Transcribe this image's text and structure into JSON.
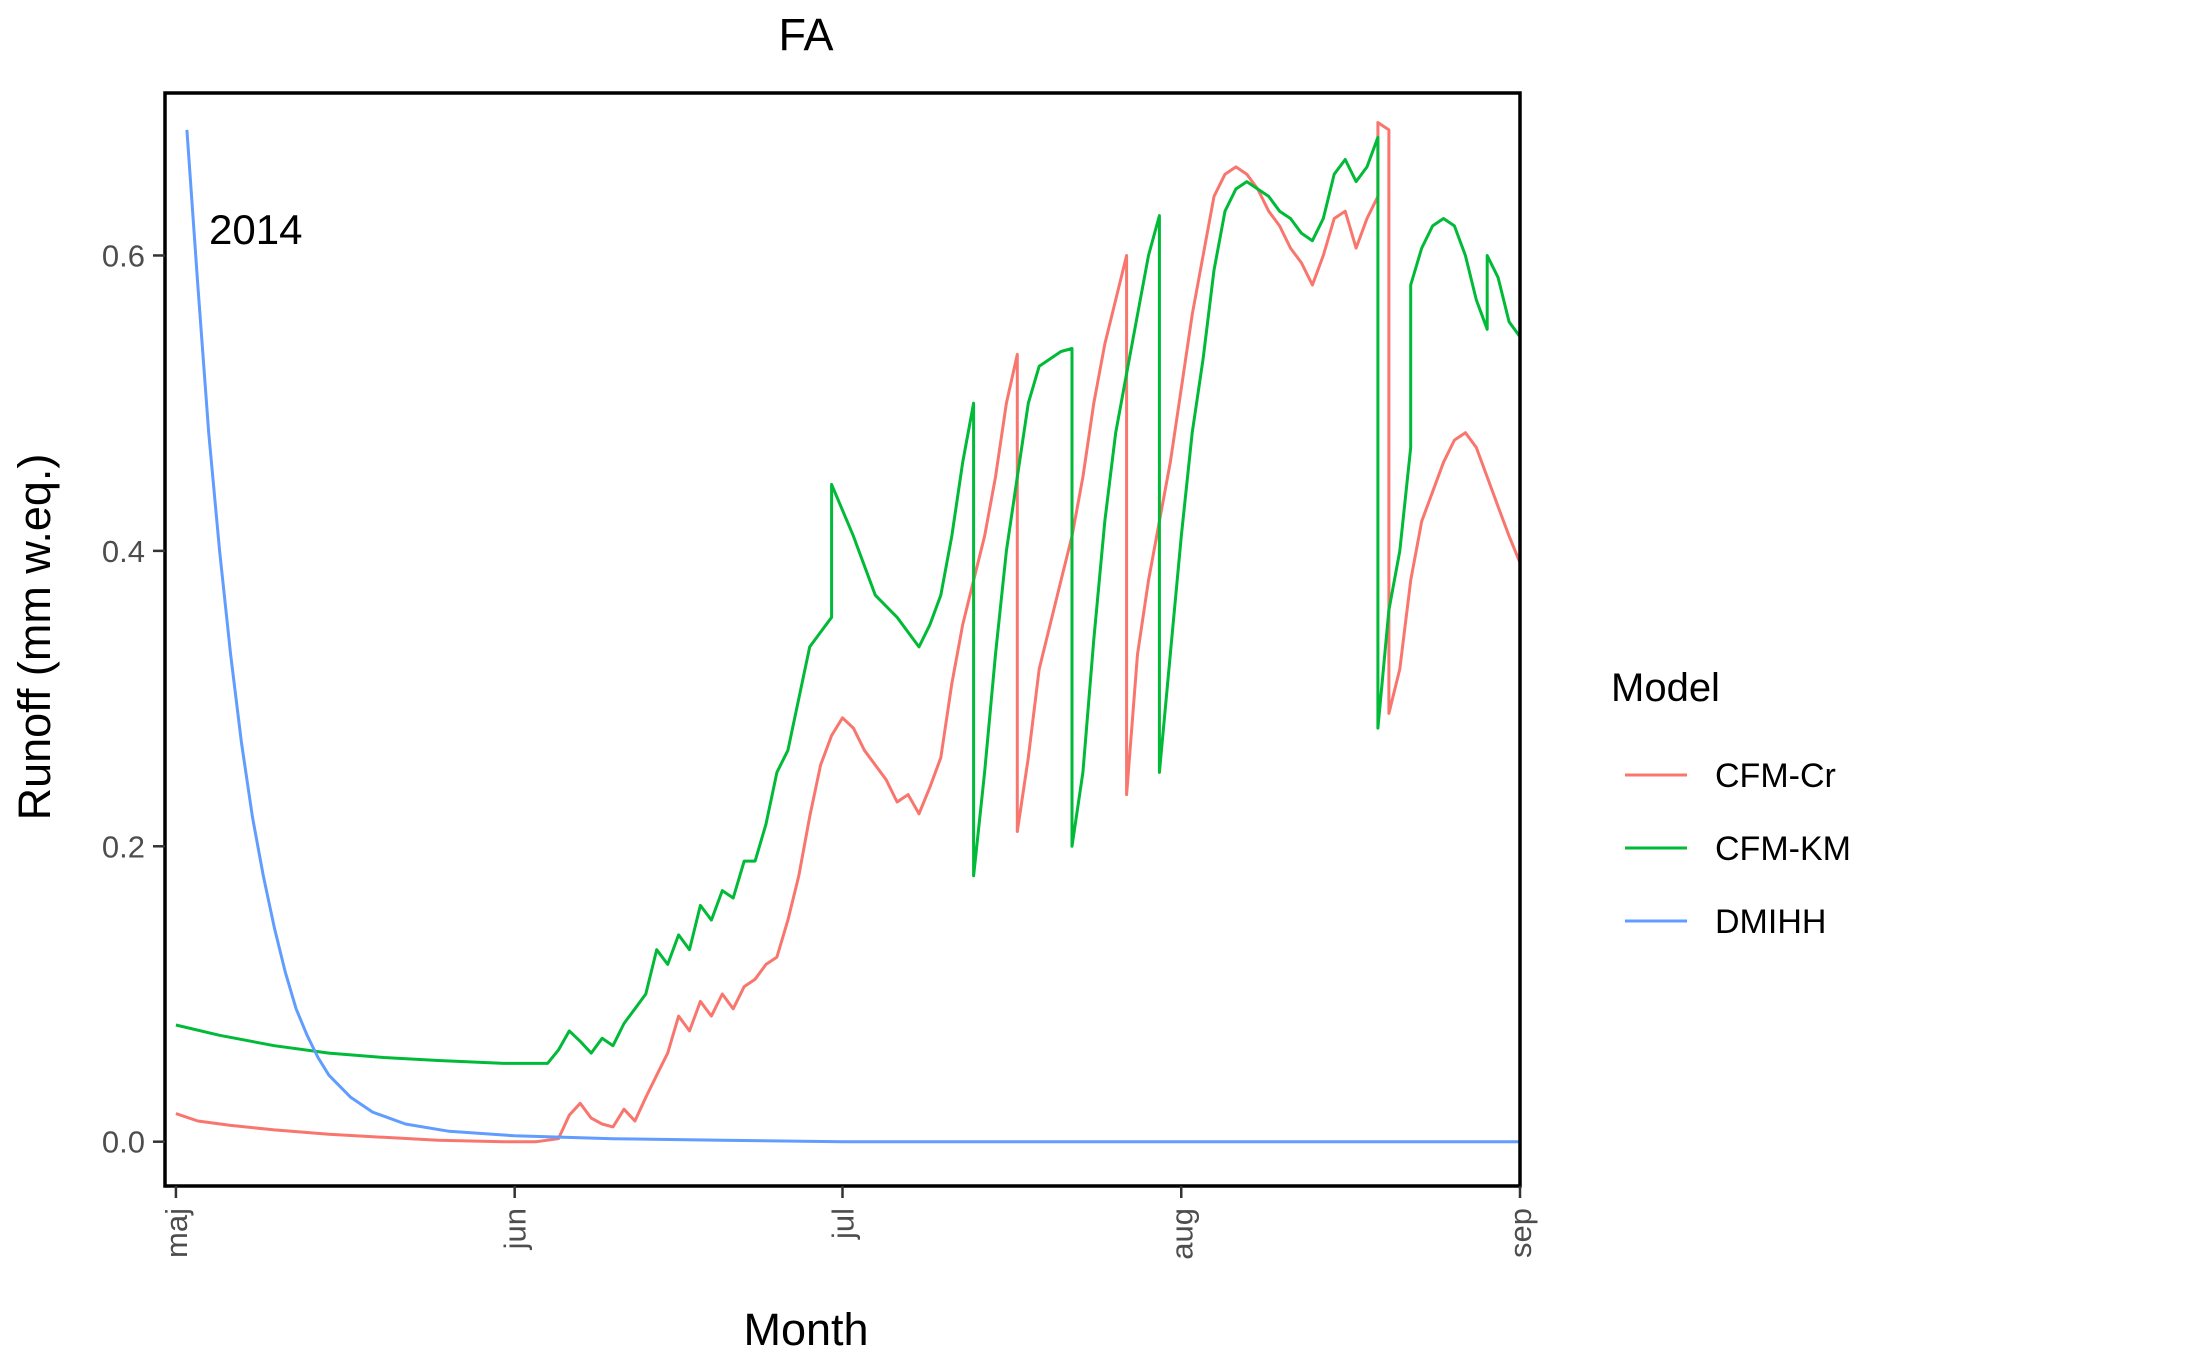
{
  "chart_data": {
    "type": "line",
    "title": "FA",
    "xlabel": "Month",
    "ylabel": "Runoff (mm w.eq.)",
    "annotation": "2014",
    "xlim": [
      "2014-04-30",
      "2014-09-01"
    ],
    "ylim": [
      -0.03,
      0.71
    ],
    "x_ticks": [
      {
        "date": "2014-05-01",
        "label": "maj"
      },
      {
        "date": "2014-06-01",
        "label": "jun"
      },
      {
        "date": "2014-07-01",
        "label": "jul"
      },
      {
        "date": "2014-08-01",
        "label": "aug"
      },
      {
        "date": "2014-09-01",
        "label": "sep"
      }
    ],
    "y_ticks": [
      0.0,
      0.2,
      0.4,
      0.6
    ],
    "y_tick_labels": [
      "0.0",
      "0.2",
      "0.4",
      "0.6"
    ],
    "grid": false,
    "legend": {
      "title": "Model",
      "position": "right"
    },
    "series": [
      {
        "name": "CFM-Cr",
        "color": "#F8766D",
        "points": [
          [
            "2014-05-01",
            0.019
          ],
          [
            "2014-05-03",
            0.014
          ],
          [
            "2014-05-06",
            0.011
          ],
          [
            "2014-05-10",
            0.008
          ],
          [
            "2014-05-15",
            0.005
          ],
          [
            "2014-05-20",
            0.003
          ],
          [
            "2014-05-25",
            0.001
          ],
          [
            "2014-05-31",
            0.0
          ],
          [
            "2014-06-03",
            0.0
          ],
          [
            "2014-06-05",
            0.002
          ],
          [
            "2014-06-06",
            0.018
          ],
          [
            "2014-06-07",
            0.026
          ],
          [
            "2014-06-08",
            0.016
          ],
          [
            "2014-06-09",
            0.012
          ],
          [
            "2014-06-10",
            0.01
          ],
          [
            "2014-06-11",
            0.022
          ],
          [
            "2014-06-12",
            0.014
          ],
          [
            "2014-06-13",
            0.03
          ],
          [
            "2014-06-14",
            0.045
          ],
          [
            "2014-06-15",
            0.06
          ],
          [
            "2014-06-16",
            0.085
          ],
          [
            "2014-06-17",
            0.075
          ],
          [
            "2014-06-18",
            0.095
          ],
          [
            "2014-06-19",
            0.085
          ],
          [
            "2014-06-20",
            0.1
          ],
          [
            "2014-06-21",
            0.09
          ],
          [
            "2014-06-22",
            0.105
          ],
          [
            "2014-06-23",
            0.11
          ],
          [
            "2014-06-24",
            0.12
          ],
          [
            "2014-06-25",
            0.125
          ],
          [
            "2014-06-26",
            0.15
          ],
          [
            "2014-06-27",
            0.18
          ],
          [
            "2014-06-28",
            0.22
          ],
          [
            "2014-06-29",
            0.255
          ],
          [
            "2014-06-30",
            0.275
          ],
          [
            "2014-07-01",
            0.287
          ],
          [
            "2014-07-02",
            0.28
          ],
          [
            "2014-07-03",
            0.265
          ],
          [
            "2014-07-05",
            0.245
          ],
          [
            "2014-07-06",
            0.23
          ],
          [
            "2014-07-07",
            0.235
          ],
          [
            "2014-07-08",
            0.222
          ],
          [
            "2014-07-09",
            0.24
          ],
          [
            "2014-07-10",
            0.26
          ],
          [
            "2014-07-11",
            0.31
          ],
          [
            "2014-07-12",
            0.35
          ],
          [
            "2014-07-13",
            0.38
          ],
          [
            "2014-07-14",
            0.41
          ],
          [
            "2014-07-15",
            0.45
          ],
          [
            "2014-07-16",
            0.5
          ],
          [
            "2014-07-17",
            0.533
          ],
          [
            "2014-07-17",
            0.21
          ],
          [
            "2014-07-18",
            0.26
          ],
          [
            "2014-07-19",
            0.32
          ],
          [
            "2014-07-20",
            0.35
          ],
          [
            "2014-07-21",
            0.38
          ],
          [
            "2014-07-22",
            0.41
          ],
          [
            "2014-07-23",
            0.45
          ],
          [
            "2014-07-24",
            0.5
          ],
          [
            "2014-07-25",
            0.54
          ],
          [
            "2014-07-26",
            0.57
          ],
          [
            "2014-07-27",
            0.6
          ],
          [
            "2014-07-27",
            0.235
          ],
          [
            "2014-07-28",
            0.33
          ],
          [
            "2014-07-29",
            0.38
          ],
          [
            "2014-07-30",
            0.42
          ],
          [
            "2014-07-31",
            0.46
          ],
          [
            "2014-08-01",
            0.51
          ],
          [
            "2014-08-02",
            0.56
          ],
          [
            "2014-08-03",
            0.6
          ],
          [
            "2014-08-04",
            0.64
          ],
          [
            "2014-08-05",
            0.655
          ],
          [
            "2014-08-06",
            0.66
          ],
          [
            "2014-08-07",
            0.655
          ],
          [
            "2014-08-08",
            0.645
          ],
          [
            "2014-08-09",
            0.63
          ],
          [
            "2014-08-10",
            0.62
          ],
          [
            "2014-08-11",
            0.605
          ],
          [
            "2014-08-12",
            0.595
          ],
          [
            "2014-08-13",
            0.58
          ],
          [
            "2014-08-14",
            0.6
          ],
          [
            "2014-08-15",
            0.625
          ],
          [
            "2014-08-16",
            0.63
          ],
          [
            "2014-08-17",
            0.605
          ],
          [
            "2014-08-18",
            0.625
          ],
          [
            "2014-08-19",
            0.64
          ],
          [
            "2014-08-19",
            0.69
          ],
          [
            "2014-08-20",
            0.685
          ],
          [
            "2014-08-20",
            0.29
          ],
          [
            "2014-08-21",
            0.32
          ],
          [
            "2014-08-22",
            0.38
          ],
          [
            "2014-08-23",
            0.42
          ],
          [
            "2014-08-24",
            0.44
          ],
          [
            "2014-08-25",
            0.46
          ],
          [
            "2014-08-26",
            0.475
          ],
          [
            "2014-08-27",
            0.48
          ],
          [
            "2014-08-28",
            0.47
          ],
          [
            "2014-08-29",
            0.45
          ],
          [
            "2014-08-30",
            0.43
          ],
          [
            "2014-08-31",
            0.41
          ],
          [
            "2014-09-01",
            0.392
          ]
        ]
      },
      {
        "name": "CFM-KM",
        "color": "#00BA38",
        "points": [
          [
            "2014-05-01",
            0.079
          ],
          [
            "2014-05-05",
            0.072
          ],
          [
            "2014-05-10",
            0.065
          ],
          [
            "2014-05-15",
            0.06
          ],
          [
            "2014-05-20",
            0.057
          ],
          [
            "2014-05-25",
            0.055
          ],
          [
            "2014-05-31",
            0.053
          ],
          [
            "2014-06-04",
            0.053
          ],
          [
            "2014-06-05",
            0.062
          ],
          [
            "2014-06-06",
            0.075
          ],
          [
            "2014-06-07",
            0.068
          ],
          [
            "2014-06-08",
            0.06
          ],
          [
            "2014-06-09",
            0.07
          ],
          [
            "2014-06-10",
            0.065
          ],
          [
            "2014-06-11",
            0.08
          ],
          [
            "2014-06-12",
            0.09
          ],
          [
            "2014-06-13",
            0.1
          ],
          [
            "2014-06-14",
            0.13
          ],
          [
            "2014-06-15",
            0.12
          ],
          [
            "2014-06-16",
            0.14
          ],
          [
            "2014-06-17",
            0.13
          ],
          [
            "2014-06-18",
            0.16
          ],
          [
            "2014-06-19",
            0.15
          ],
          [
            "2014-06-20",
            0.17
          ],
          [
            "2014-06-21",
            0.165
          ],
          [
            "2014-06-22",
            0.19
          ],
          [
            "2014-06-23",
            0.19
          ],
          [
            "2014-06-24",
            0.215
          ],
          [
            "2014-06-25",
            0.25
          ],
          [
            "2014-06-26",
            0.265
          ],
          [
            "2014-06-27",
            0.3
          ],
          [
            "2014-06-28",
            0.335
          ],
          [
            "2014-06-29",
            0.345
          ],
          [
            "2014-06-30",
            0.355
          ],
          [
            "2014-06-30",
            0.445
          ],
          [
            "2014-07-02",
            0.41
          ],
          [
            "2014-07-04",
            0.37
          ],
          [
            "2014-07-06",
            0.355
          ],
          [
            "2014-07-08",
            0.335
          ],
          [
            "2014-07-09",
            0.35
          ],
          [
            "2014-07-10",
            0.37
          ],
          [
            "2014-07-11",
            0.41
          ],
          [
            "2014-07-12",
            0.46
          ],
          [
            "2014-07-13",
            0.5
          ],
          [
            "2014-07-13",
            0.18
          ],
          [
            "2014-07-14",
            0.25
          ],
          [
            "2014-07-15",
            0.33
          ],
          [
            "2014-07-16",
            0.4
          ],
          [
            "2014-07-17",
            0.45
          ],
          [
            "2014-07-18",
            0.5
          ],
          [
            "2014-07-19",
            0.525
          ],
          [
            "2014-07-20",
            0.53
          ],
          [
            "2014-07-21",
            0.535
          ],
          [
            "2014-07-22",
            0.537
          ],
          [
            "2014-07-22",
            0.2
          ],
          [
            "2014-07-23",
            0.25
          ],
          [
            "2014-07-24",
            0.34
          ],
          [
            "2014-07-25",
            0.42
          ],
          [
            "2014-07-26",
            0.48
          ],
          [
            "2014-07-27",
            0.52
          ],
          [
            "2014-07-28",
            0.56
          ],
          [
            "2014-07-29",
            0.6
          ],
          [
            "2014-07-30",
            0.627
          ],
          [
            "2014-07-30",
            0.25
          ],
          [
            "2014-07-31",
            0.33
          ],
          [
            "2014-08-01",
            0.41
          ],
          [
            "2014-08-02",
            0.48
          ],
          [
            "2014-08-03",
            0.53
          ],
          [
            "2014-08-04",
            0.59
          ],
          [
            "2014-08-05",
            0.63
          ],
          [
            "2014-08-06",
            0.645
          ],
          [
            "2014-08-07",
            0.65
          ],
          [
            "2014-08-08",
            0.645
          ],
          [
            "2014-08-09",
            0.64
          ],
          [
            "2014-08-10",
            0.63
          ],
          [
            "2014-08-11",
            0.625
          ],
          [
            "2014-08-12",
            0.615
          ],
          [
            "2014-08-13",
            0.61
          ],
          [
            "2014-08-14",
            0.625
          ],
          [
            "2014-08-15",
            0.655
          ],
          [
            "2014-08-16",
            0.665
          ],
          [
            "2014-08-17",
            0.65
          ],
          [
            "2014-08-18",
            0.66
          ],
          [
            "2014-08-19",
            0.68
          ],
          [
            "2014-08-19",
            0.28
          ],
          [
            "2014-08-20",
            0.36
          ],
          [
            "2014-08-21",
            0.4
          ],
          [
            "2014-08-22",
            0.47
          ],
          [
            "2014-08-22",
            0.58
          ],
          [
            "2014-08-23",
            0.605
          ],
          [
            "2014-08-24",
            0.62
          ],
          [
            "2014-08-25",
            0.625
          ],
          [
            "2014-08-26",
            0.62
          ],
          [
            "2014-08-27",
            0.6
          ],
          [
            "2014-08-28",
            0.57
          ],
          [
            "2014-08-29",
            0.55
          ],
          [
            "2014-08-29",
            0.6
          ],
          [
            "2014-08-30",
            0.585
          ],
          [
            "2014-08-31",
            0.555
          ],
          [
            "2014-09-01",
            0.545
          ]
        ]
      },
      {
        "name": "DMIHH",
        "color": "#619CFF",
        "points": [
          [
            "2014-05-02",
            0.685
          ],
          [
            "2014-05-03",
            0.58
          ],
          [
            "2014-05-04",
            0.48
          ],
          [
            "2014-05-05",
            0.4
          ],
          [
            "2014-05-06",
            0.33
          ],
          [
            "2014-05-07",
            0.27
          ],
          [
            "2014-05-08",
            0.22
          ],
          [
            "2014-05-09",
            0.18
          ],
          [
            "2014-05-10",
            0.145
          ],
          [
            "2014-05-11",
            0.115
          ],
          [
            "2014-05-12",
            0.09
          ],
          [
            "2014-05-13",
            0.072
          ],
          [
            "2014-05-14",
            0.057
          ],
          [
            "2014-05-15",
            0.045
          ],
          [
            "2014-05-17",
            0.03
          ],
          [
            "2014-05-19",
            0.02
          ],
          [
            "2014-05-22",
            0.012
          ],
          [
            "2014-05-26",
            0.007
          ],
          [
            "2014-06-01",
            0.004
          ],
          [
            "2014-06-10",
            0.002
          ],
          [
            "2014-06-20",
            0.001
          ],
          [
            "2014-07-01",
            0.0
          ],
          [
            "2014-09-01",
            0.0
          ]
        ]
      }
    ]
  }
}
